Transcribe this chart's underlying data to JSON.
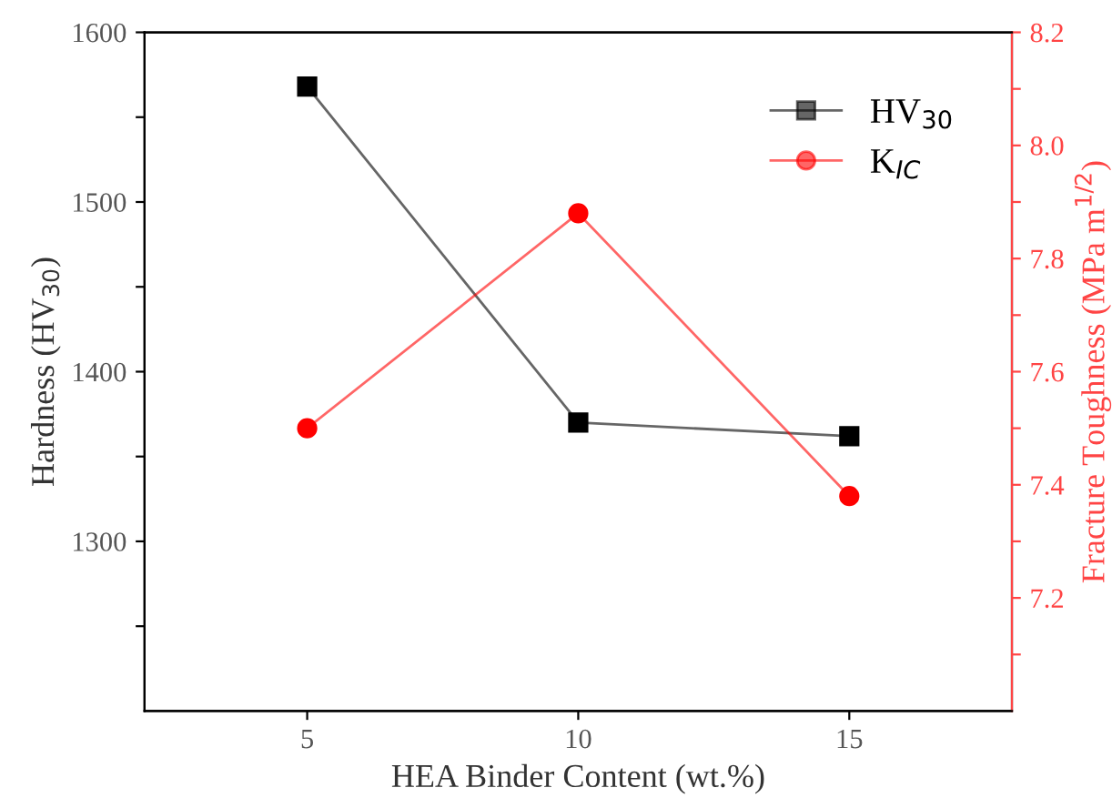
{
  "chart_data": {
    "type": "line",
    "xlabel": "HEA Binder Content (wt.%)",
    "ylabel": "Hardness (HV$_{30}$)",
    "y2label": "Fracture Toughness (MPa m$^{1/2}$)",
    "x": [
      5,
      10,
      15
    ],
    "series": [
      {
        "name": "HV$_{30}$",
        "color": "#000000",
        "values": [
          1568,
          1370,
          1362
        ],
        "marker": "square"
      },
      {
        "name": "K$_{IC}$",
        "color": "#ff0000",
        "values": [
          7.5,
          7.88,
          7.38
        ],
        "marker": "circle",
        "axis": "y2"
      }
    ],
    "xlim": [
      2,
      18
    ],
    "xticks": [
      5,
      10,
      15
    ],
    "ylim": [
      1200,
      1600
    ],
    "yticks": [
      {
        "value": 1250,
        "label": null
      },
      1300,
      {
        "value": 1350,
        "label": null
      },
      1400,
      {
        "value": 1450,
        "label": null
      },
      1500,
      {
        "value": 1550,
        "label": null
      },
      1600
    ],
    "y2lim": [
      7.0,
      8.2
    ],
    "y2ticks": [
      {
        "value": 7.1,
        "label": null
      },
      {
        "value": 7.2,
        "label": "7.2"
      },
      {
        "value": 7.3,
        "label": null
      },
      {
        "value": 7.4,
        "label": "7.4"
      },
      {
        "value": 7.5,
        "label": null
      },
      {
        "value": 7.6,
        "label": "7.6"
      },
      {
        "value": 7.7,
        "label": null
      },
      {
        "value": 7.8,
        "label": "7.8"
      },
      {
        "value": 7.9,
        "label": null
      },
      {
        "value": 8.0,
        "label": "8.0"
      },
      {
        "value": 8.1,
        "label": null
      },
      {
        "value": 8.2,
        "label": "8.2"
      }
    ],
    "grid": false,
    "legend": "top right",
    "line_style": "solid"
  }
}
